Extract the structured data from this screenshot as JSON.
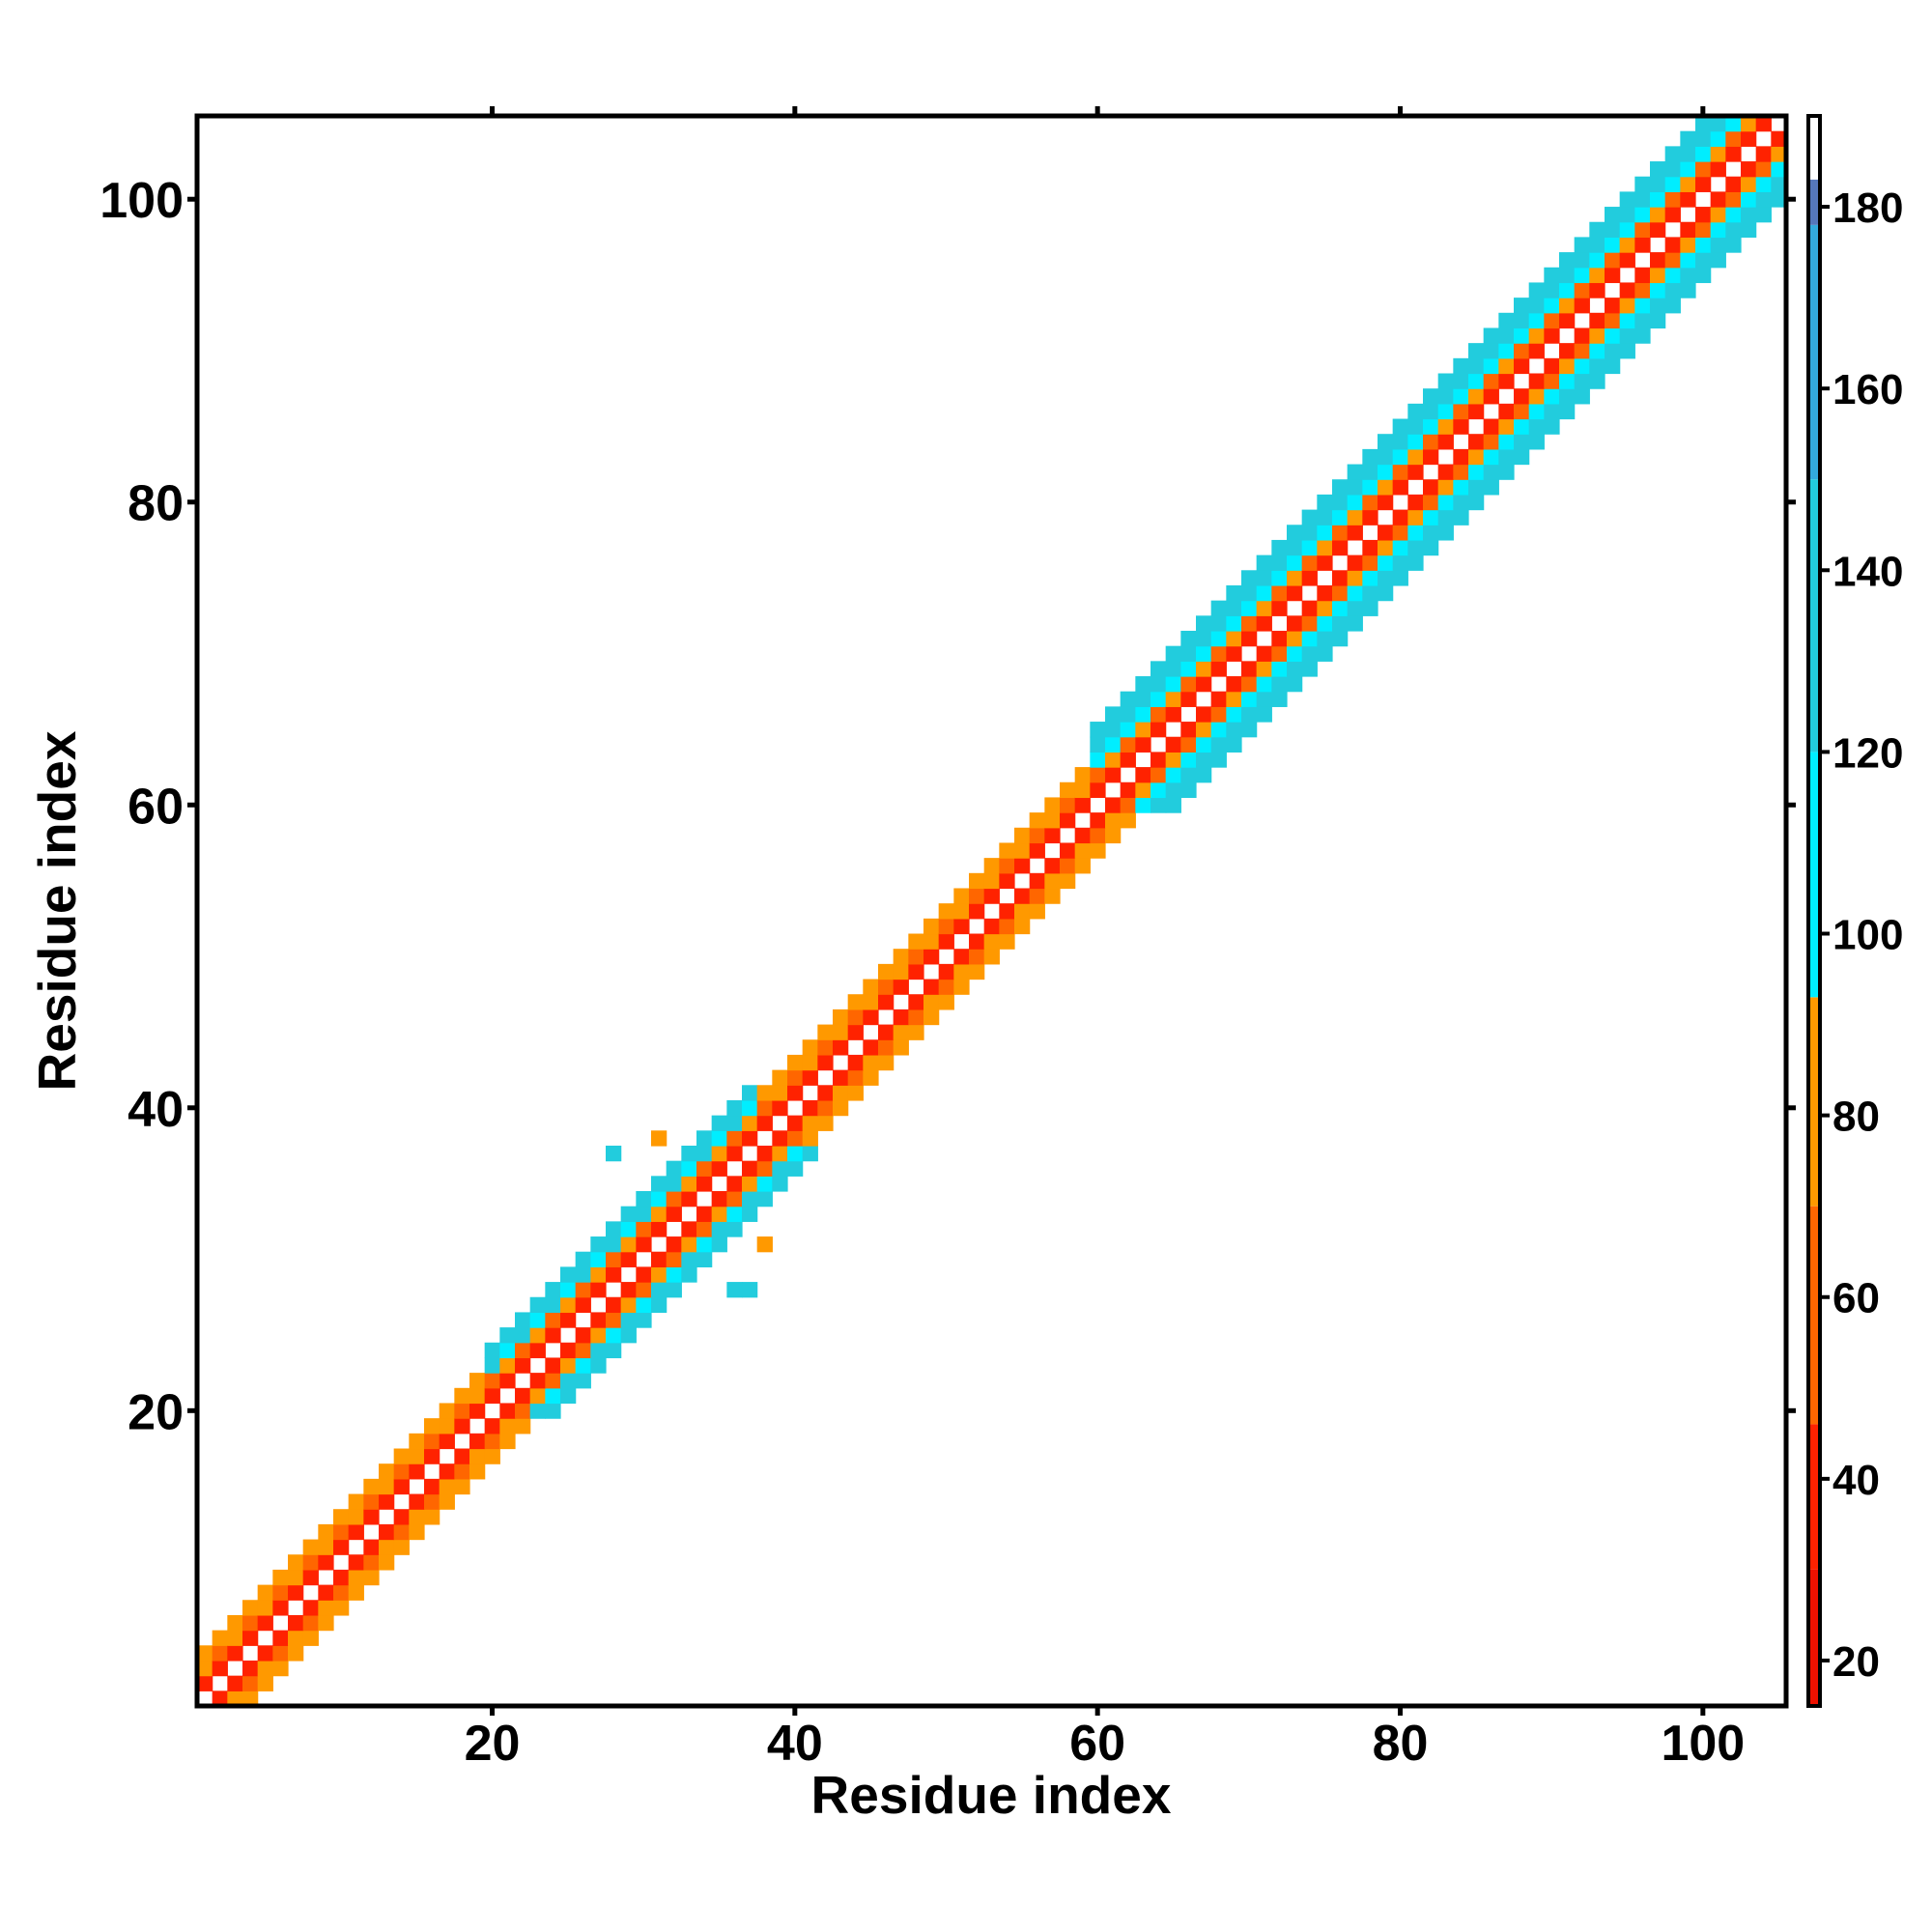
{
  "chart_data": {
    "type": "heatmap",
    "title": "",
    "xlabel": "Residue index",
    "ylabel": "Residue index",
    "xlim": [
      1,
      105
    ],
    "ylim": [
      1,
      105
    ],
    "x_ticks": [
      20,
      40,
      60,
      80,
      100
    ],
    "y_ticks": [
      20,
      40,
      60,
      80,
      100
    ],
    "colorbar": {
      "range": [
        15,
        190
      ],
      "ticks": [
        20,
        40,
        60,
        80,
        100,
        120,
        140,
        160,
        180
      ],
      "bands": [
        {
          "from": 15,
          "to": 30,
          "color": "#ee1100"
        },
        {
          "from": 30,
          "to": 46,
          "color": "#ff2200"
        },
        {
          "from": 46,
          "to": 70,
          "color": "#ff6600"
        },
        {
          "from": 70,
          "to": 93,
          "color": "#ff9900"
        },
        {
          "from": 93,
          "to": 120,
          "color": "#00eeff"
        },
        {
          "from": 120,
          "to": 150,
          "color": "#22ccdd"
        },
        {
          "from": 150,
          "to": 178,
          "color": "#33aadd"
        },
        {
          "from": 178,
          "to": 183,
          "color": "#5577bb"
        },
        {
          "from": 183,
          "to": 190,
          "color": "#ffffff"
        }
      ]
    },
    "description_of_values": "contact distance map, value per residue pair (i,j); diagonal band pattern",
    "bands_by_offset": {
      "offset_1": 30,
      "offset_2": 55,
      "offset_3": 75,
      "offset_4": 110,
      "offset_5": 130
    },
    "segments": [
      {
        "from": 1,
        "to": 20,
        "max_offset": 3,
        "values": [
          30,
          60,
          80
        ]
      },
      {
        "from": 20,
        "to": 38,
        "max_offset": 4,
        "values": [
          30,
          60,
          110,
          130
        ]
      },
      {
        "from": 38,
        "to": 60,
        "max_offset": 3,
        "values": [
          30,
          60,
          80
        ]
      },
      {
        "from": 60,
        "to": 105,
        "max_offset": 5,
        "values": [
          30,
          60,
          105,
          120,
          140
        ]
      }
    ],
    "isolated_points": [
      {
        "x": 28,
        "y": 37,
        "value": 130
      },
      {
        "x": 31,
        "y": 38,
        "value": 80
      },
      {
        "x": 36,
        "y": 28,
        "value": 130
      },
      {
        "x": 37,
        "y": 28,
        "value": 130
      },
      {
        "x": 38,
        "y": 31,
        "value": 80
      }
    ]
  }
}
